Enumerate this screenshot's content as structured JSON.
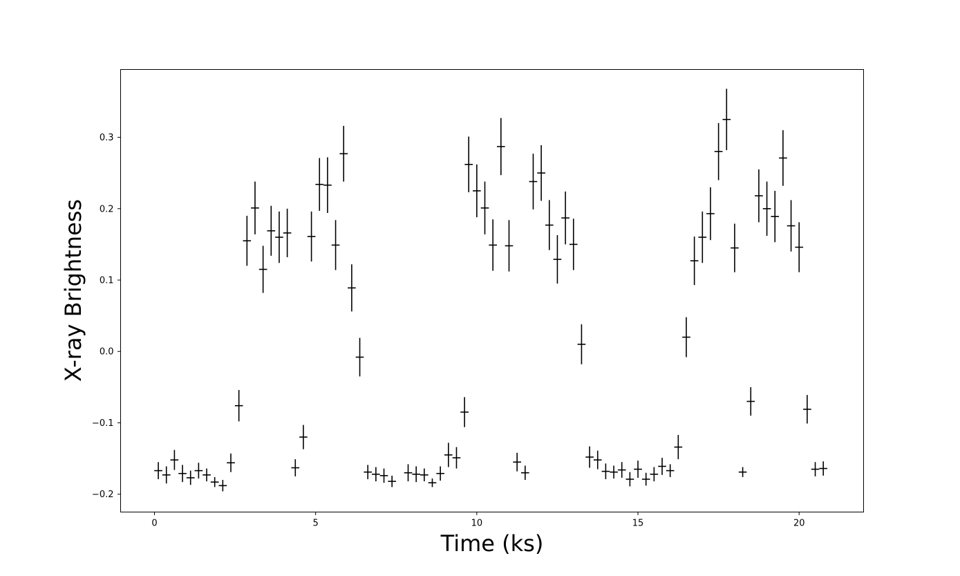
{
  "chart_data": {
    "type": "scatter",
    "title": "",
    "xlabel": "Time (ks)",
    "ylabel": "X-ray Brightness",
    "xlim": [
      -1.05,
      22.0
    ],
    "ylim": [
      -0.225,
      0.395
    ],
    "xticks": [
      0,
      5,
      10,
      15,
      20
    ],
    "xtick_labels": [
      "0",
      "5",
      "10",
      "15",
      "20"
    ],
    "yticks": [
      -0.2,
      -0.1,
      0.0,
      0.1,
      0.2,
      0.3
    ],
    "ytick_labels": [
      "−0.2",
      "−0.1",
      "0.0",
      "0.1",
      "0.2",
      "0.3"
    ],
    "grid": false,
    "legend": "none",
    "marker": "errorbar-cross",
    "color": "#000000",
    "x_half_width": 0.125,
    "points": [
      {
        "x": 0.12,
        "y": -0.167,
        "yerr": 0.012
      },
      {
        "x": 0.37,
        "y": -0.173,
        "yerr": 0.012
      },
      {
        "x": 0.62,
        "y": -0.152,
        "yerr": 0.014
      },
      {
        "x": 0.87,
        "y": -0.171,
        "yerr": 0.012
      },
      {
        "x": 1.12,
        "y": -0.177,
        "yerr": 0.01
      },
      {
        "x": 1.37,
        "y": -0.167,
        "yerr": 0.011
      },
      {
        "x": 1.62,
        "y": -0.173,
        "yerr": 0.009
      },
      {
        "x": 1.87,
        "y": -0.183,
        "yerr": 0.007
      },
      {
        "x": 2.12,
        "y": -0.188,
        "yerr": 0.008
      },
      {
        "x": 2.37,
        "y": -0.156,
        "yerr": 0.013
      },
      {
        "x": 2.62,
        "y": -0.076,
        "yerr": 0.022
      },
      {
        "x": 2.87,
        "y": 0.155,
        "yerr": 0.035
      },
      {
        "x": 3.12,
        "y": 0.201,
        "yerr": 0.037
      },
      {
        "x": 3.37,
        "y": 0.115,
        "yerr": 0.033
      },
      {
        "x": 3.62,
        "y": 0.169,
        "yerr": 0.035
      },
      {
        "x": 3.87,
        "y": 0.16,
        "yerr": 0.036
      },
      {
        "x": 4.12,
        "y": 0.166,
        "yerr": 0.034
      },
      {
        "x": 4.37,
        "y": -0.163,
        "yerr": 0.012
      },
      {
        "x": 4.62,
        "y": -0.12,
        "yerr": 0.017
      },
      {
        "x": 4.87,
        "y": 0.161,
        "yerr": 0.035
      },
      {
        "x": 5.12,
        "y": 0.234,
        "yerr": 0.037
      },
      {
        "x": 5.37,
        "y": 0.233,
        "yerr": 0.039
      },
      {
        "x": 5.62,
        "y": 0.149,
        "yerr": 0.035
      },
      {
        "x": 5.87,
        "y": 0.277,
        "yerr": 0.039
      },
      {
        "x": 6.12,
        "y": 0.089,
        "yerr": 0.033
      },
      {
        "x": 6.37,
        "y": -0.008,
        "yerr": 0.027
      },
      {
        "x": 6.62,
        "y": -0.169,
        "yerr": 0.01
      },
      {
        "x": 6.87,
        "y": -0.172,
        "yerr": 0.01
      },
      {
        "x": 7.12,
        "y": -0.174,
        "yerr": 0.01
      },
      {
        "x": 7.37,
        "y": -0.182,
        "yerr": 0.008
      },
      {
        "x": 7.87,
        "y": -0.17,
        "yerr": 0.012
      },
      {
        "x": 8.12,
        "y": -0.172,
        "yerr": 0.011
      },
      {
        "x": 8.37,
        "y": -0.173,
        "yerr": 0.009
      },
      {
        "x": 8.62,
        "y": -0.184,
        "yerr": 0.006
      },
      {
        "x": 8.87,
        "y": -0.171,
        "yerr": 0.01
      },
      {
        "x": 9.12,
        "y": -0.145,
        "yerr": 0.017
      },
      {
        "x": 9.37,
        "y": -0.149,
        "yerr": 0.015
      },
      {
        "x": 9.62,
        "y": -0.085,
        "yerr": 0.021
      },
      {
        "x": 9.75,
        "y": 0.262,
        "yerr": 0.039
      },
      {
        "x": 10.0,
        "y": 0.225,
        "yerr": 0.037
      },
      {
        "x": 10.25,
        "y": 0.201,
        "yerr": 0.037
      },
      {
        "x": 10.5,
        "y": 0.149,
        "yerr": 0.036
      },
      {
        "x": 10.75,
        "y": 0.287,
        "yerr": 0.04
      },
      {
        "x": 11.0,
        "y": 0.148,
        "yerr": 0.036
      },
      {
        "x": 11.25,
        "y": -0.155,
        "yerr": 0.013
      },
      {
        "x": 11.5,
        "y": -0.17,
        "yerr": 0.01
      },
      {
        "x": 11.75,
        "y": 0.238,
        "yerr": 0.039
      },
      {
        "x": 12.0,
        "y": 0.25,
        "yerr": 0.039
      },
      {
        "x": 12.25,
        "y": 0.177,
        "yerr": 0.035
      },
      {
        "x": 12.5,
        "y": 0.129,
        "yerr": 0.034
      },
      {
        "x": 12.75,
        "y": 0.187,
        "yerr": 0.037
      },
      {
        "x": 13.0,
        "y": 0.15,
        "yerr": 0.036
      },
      {
        "x": 13.25,
        "y": 0.01,
        "yerr": 0.028
      },
      {
        "x": 13.5,
        "y": -0.148,
        "yerr": 0.015
      },
      {
        "x": 13.75,
        "y": -0.152,
        "yerr": 0.013
      },
      {
        "x": 14.0,
        "y": -0.168,
        "yerr": 0.011
      },
      {
        "x": 14.25,
        "y": -0.169,
        "yerr": 0.009
      },
      {
        "x": 14.5,
        "y": -0.166,
        "yerr": 0.011
      },
      {
        "x": 14.75,
        "y": -0.179,
        "yerr": 0.01
      },
      {
        "x": 15.0,
        "y": -0.165,
        "yerr": 0.012
      },
      {
        "x": 15.25,
        "y": -0.179,
        "yerr": 0.009
      },
      {
        "x": 15.5,
        "y": -0.172,
        "yerr": 0.01
      },
      {
        "x": 15.75,
        "y": -0.161,
        "yerr": 0.012
      },
      {
        "x": 16.0,
        "y": -0.167,
        "yerr": 0.009
      },
      {
        "x": 16.25,
        "y": -0.134,
        "yerr": 0.017
      },
      {
        "x": 16.5,
        "y": 0.02,
        "yerr": 0.028
      },
      {
        "x": 16.75,
        "y": 0.127,
        "yerr": 0.034
      },
      {
        "x": 17.0,
        "y": 0.16,
        "yerr": 0.036
      },
      {
        "x": 17.25,
        "y": 0.193,
        "yerr": 0.037
      },
      {
        "x": 17.5,
        "y": 0.28,
        "yerr": 0.04
      },
      {
        "x": 17.75,
        "y": 0.325,
        "yerr": 0.043
      },
      {
        "x": 18.0,
        "y": 0.145,
        "yerr": 0.034
      },
      {
        "x": 18.25,
        "y": -0.169,
        "yerr": 0.007
      },
      {
        "x": 18.5,
        "y": -0.07,
        "yerr": 0.02
      },
      {
        "x": 18.75,
        "y": 0.218,
        "yerr": 0.037
      },
      {
        "x": 19.0,
        "y": 0.2,
        "yerr": 0.038
      },
      {
        "x": 19.25,
        "y": 0.189,
        "yerr": 0.036
      },
      {
        "x": 19.5,
        "y": 0.271,
        "yerr": 0.039
      },
      {
        "x": 19.75,
        "y": 0.176,
        "yerr": 0.036
      },
      {
        "x": 20.0,
        "y": 0.146,
        "yerr": 0.035
      },
      {
        "x": 20.25,
        "y": -0.081,
        "yerr": 0.02
      },
      {
        "x": 20.5,
        "y": -0.165,
        "yerr": 0.01
      },
      {
        "x": 20.75,
        "y": -0.164,
        "yerr": 0.01
      }
    ]
  }
}
